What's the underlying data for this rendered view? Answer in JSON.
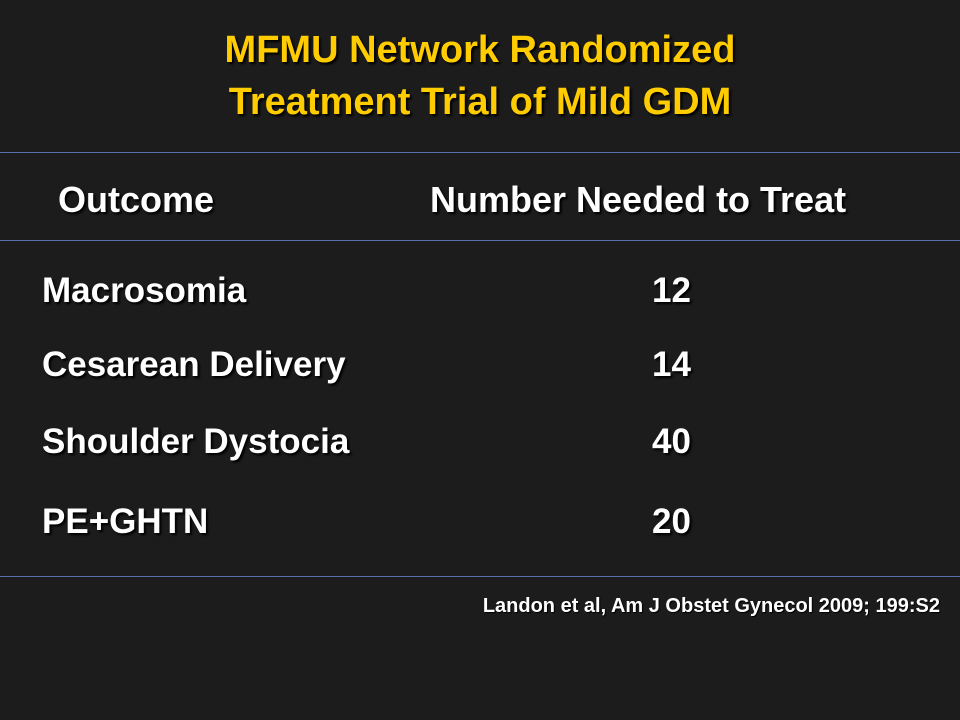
{
  "slide": {
    "title_line1": "MFMU Network Randomized",
    "title_line2": "Treatment Trial of Mild GDM",
    "header_outcome": "Outcome",
    "header_nnt": "Number Needed to Treat",
    "rows": [
      {
        "outcome": "Macrosomia",
        "nnt": "12"
      },
      {
        "outcome": "Cesarean Delivery",
        "nnt": "14"
      },
      {
        "outcome": "Shoulder Dystocia",
        "nnt": "40"
      },
      {
        "outcome": "PE+GHTN",
        "nnt": "20"
      }
    ],
    "citation": "Landon et al, Am J Obstet Gynecol 2009; 199:S2",
    "colors": {
      "background": "#1c1c1c",
      "title": "#ffcc00",
      "text": "#ffffff",
      "rule": "#5a6fb0"
    }
  }
}
